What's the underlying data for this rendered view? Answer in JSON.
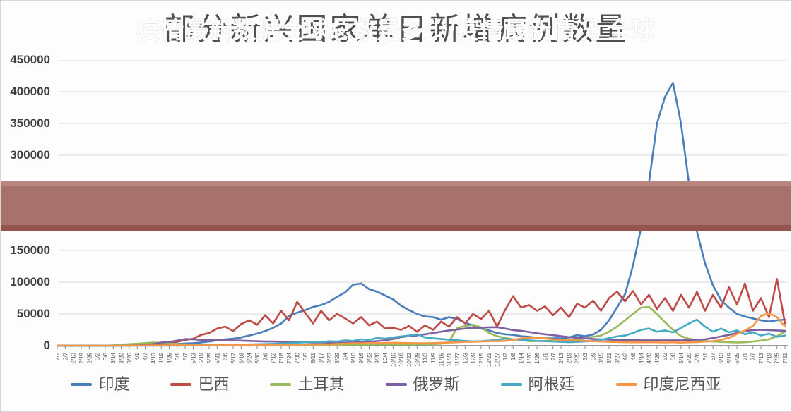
{
  "overlay_banner": {
    "text": "疫情最新数据全球总数是多少/疫情最新情况 全球",
    "band_color": "#a8726c",
    "band_top_color": "#b9867f",
    "band_bottom_color": "#96544e",
    "text_color": "#ffffff"
  },
  "chart_data": {
    "type": "line",
    "title": "部分新兴国家单日新增病例数量",
    "xlabel": "",
    "ylabel": "",
    "ylim": [
      0,
      450000
    ],
    "y_ticks": [
      0,
      50000,
      100000,
      150000,
      200000,
      250000,
      300000,
      350000,
      400000,
      450000
    ],
    "grid": "horizontal",
    "legend_position": "bottom",
    "x_labels": [
      "2/1",
      "2/7",
      "2/13",
      "2/19",
      "2/25",
      "3/2",
      "3/8",
      "3/14",
      "3/20",
      "3/26",
      "4/1",
      "4/7",
      "4/13",
      "4/19",
      "4/25",
      "5/1",
      "5/7",
      "5/13",
      "5/19",
      "5/25",
      "5/31",
      "6/6",
      "6/12",
      "6/18",
      "6/24",
      "6/30",
      "7/6",
      "7/12",
      "7/18",
      "7/24",
      "7/30",
      "8/5",
      "8/11",
      "8/17",
      "8/23",
      "8/29",
      "9/4",
      "9/10",
      "9/16",
      "9/22",
      "9/28",
      "10/4",
      "10/10",
      "10/16",
      "10/22",
      "10/28",
      "11/3",
      "11/9",
      "11/15",
      "11/21",
      "11/27",
      "12/3",
      "12/9",
      "12/15",
      "12/21",
      "12/27",
      "1/2",
      "1/8",
      "1/14",
      "1/20",
      "1/26",
      "2/1",
      "2/7",
      "2/13",
      "2/19",
      "2/25",
      "3/3",
      "3/9",
      "3/15",
      "3/21",
      "3/27",
      "4/2",
      "4/8",
      "4/14",
      "4/20",
      "4/26",
      "5/2",
      "5/8",
      "5/14",
      "5/20",
      "5/26",
      "6/1",
      "6/7",
      "6/13",
      "6/19",
      "6/25",
      "7/1",
      "7/7",
      "7/13",
      "7/19",
      "7/25",
      "7/31"
    ],
    "series": [
      {
        "id": "india",
        "name": "印度",
        "color": "#4a7ebb",
        "values": [
          0,
          0,
          0,
          0,
          0,
          0,
          50,
          100,
          200,
          400,
          600,
          900,
          1300,
          1800,
          2200,
          2800,
          3400,
          3900,
          5100,
          6500,
          8300,
          10000,
          11000,
          13000,
          16000,
          19000,
          23000,
          28000,
          35000,
          47000,
          52000,
          56000,
          61000,
          64000,
          69000,
          77000,
          84000,
          96000,
          98000,
          89000,
          85000,
          79000,
          73000,
          63000,
          56000,
          50000,
          46000,
          45000,
          41000,
          45000,
          42000,
          36000,
          32000,
          27000,
          24000,
          20000,
          18000,
          17000,
          15000,
          14000,
          12500,
          11500,
          11500,
          11500,
          13000,
          16500,
          15000,
          17500,
          25000,
          40000,
          60000,
          81000,
          126000,
          185000,
          257000,
          350000,
          392000,
          414000,
          350000,
          255000,
          180000,
          130000,
          95000,
          72000,
          60000,
          50000,
          46000,
          43000,
          40000,
          38000,
          40000,
          41000
        ]
      },
      {
        "id": "brazil",
        "name": "巴西",
        "color": "#bf4b48",
        "values": [
          0,
          0,
          0,
          0,
          0,
          0,
          0,
          0,
          300,
          700,
          1200,
          2000,
          2500,
          3000,
          4000,
          6000,
          9000,
          11000,
          17000,
          20000,
          27000,
          30000,
          23000,
          34000,
          40000,
          33000,
          48000,
          35000,
          55000,
          40000,
          69000,
          52000,
          35000,
          55000,
          40000,
          50000,
          43000,
          35000,
          45000,
          32000,
          38000,
          27000,
          28000,
          25000,
          31000,
          22000,
          32000,
          25000,
          38000,
          30000,
          45000,
          35000,
          50000,
          42000,
          55000,
          30000,
          56000,
          78000,
          60000,
          64000,
          55000,
          62000,
          48000,
          60000,
          45000,
          66000,
          60000,
          71000,
          55000,
          75000,
          85000,
          70000,
          86000,
          65000,
          80000,
          58000,
          75000,
          55000,
          80000,
          60000,
          85000,
          55000,
          80000,
          60000,
          92000,
          65000,
          98000,
          55000,
          75000,
          45000,
          105000,
          35000
        ]
      },
      {
        "id": "turkey",
        "name": "土耳其",
        "color": "#9abb59",
        "values": [
          0,
          0,
          0,
          0,
          0,
          0,
          0,
          500,
          1500,
          2500,
          3100,
          4100,
          5000,
          4500,
          3500,
          2500,
          2000,
          1700,
          1200,
          1000,
          900,
          900,
          1000,
          1200,
          1300,
          1400,
          1200,
          1100,
          950,
          900,
          950,
          1100,
          1200,
          1200,
          1300,
          1300,
          1500,
          1500,
          1700,
          1800,
          2000,
          2000,
          2000,
          2100,
          2200,
          2300,
          2400,
          2600,
          3000,
          6000,
          28000,
          31000,
          33000,
          29000,
          20000,
          15000,
          12000,
          10000,
          9000,
          7000,
          7500,
          7500,
          8000,
          8500,
          9000,
          9500,
          11000,
          14000,
          16000,
          22000,
          30000,
          40000,
          50000,
          60000,
          61000,
          50000,
          37000,
          25000,
          15000,
          11000,
          9000,
          7500,
          6500,
          6000,
          5500,
          5000,
          5500,
          6500,
          8000,
          10000,
          15000,
          22000
        ]
      },
      {
        "id": "russia",
        "name": "俄罗斯",
        "color": "#7d60a0",
        "values": [
          0,
          0,
          0,
          0,
          0,
          0,
          0,
          0,
          0,
          200,
          500,
          1000,
          2500,
          5000,
          6000,
          8000,
          10500,
          10000,
          9200,
          8900,
          8500,
          8700,
          8500,
          8000,
          7500,
          7000,
          6600,
          6500,
          6100,
          5800,
          5500,
          5300,
          5100,
          4900,
          4800,
          4700,
          4900,
          5200,
          5700,
          6200,
          7200,
          8700,
          10500,
          13600,
          15000,
          16200,
          18000,
          20000,
          22000,
          24000,
          25500,
          27000,
          28000,
          28500,
          29000,
          29000,
          27000,
          24500,
          23500,
          21500,
          19500,
          18000,
          16500,
          15000,
          13500,
          12500,
          11500,
          10500,
          10000,
          9500,
          9000,
          9000,
          8700,
          8500,
          8500,
          8500,
          8500,
          8400,
          8500,
          9000,
          9500,
          10000,
          12000,
          14500,
          17000,
          20000,
          23000,
          24500,
          25000,
          24500,
          24000,
          23500
        ]
      },
      {
        "id": "argentina",
        "name": "阿根廷",
        "color": "#46aac5",
        "values": [
          0,
          0,
          0,
          0,
          0,
          0,
          0,
          0,
          0,
          0,
          0,
          0,
          100,
          150,
          200,
          250,
          300,
          350,
          450,
          600,
          700,
          900,
          1200,
          1500,
          2000,
          2300,
          2600,
          3000,
          3500,
          4000,
          4800,
          5300,
          6000,
          5500,
          7000,
          6500,
          8500,
          7500,
          10000,
          9000,
          12000,
          11000,
          13000,
          14500,
          16000,
          18000,
          13000,
          11500,
          10500,
          9500,
          8500,
          7500,
          6500,
          7000,
          8000,
          9000,
          11000,
          10000,
          9500,
          8500,
          7500,
          7000,
          6500,
          6000,
          5500,
          6000,
          6500,
          7500,
          9000,
          12000,
          14500,
          16000,
          20000,
          25000,
          27000,
          22000,
          24000,
          21000,
          28000,
          35000,
          41000,
          30000,
          22000,
          27000,
          21000,
          24000,
          18000,
          21000,
          16000,
          19000,
          14000,
          16000
        ]
      },
      {
        "id": "indonesia",
        "name": "印度尼西亚",
        "color": "#f79646",
        "values": [
          0,
          0,
          0,
          0,
          0,
          0,
          0,
          0,
          0,
          100,
          150,
          250,
          300,
          350,
          350,
          400,
          450,
          500,
          500,
          550,
          700,
          650,
          900,
          1000,
          1100,
          1300,
          1300,
          1700,
          1800,
          1900,
          1800,
          1900,
          2000,
          2100,
          2000,
          2900,
          3300,
          3800,
          3700,
          4200,
          4000,
          4300,
          4500,
          4400,
          4100,
          4000,
          3800,
          4100,
          4500,
          4900,
          5500,
          6000,
          6200,
          6600,
          7000,
          7200,
          7500,
          9000,
          11500,
          12500,
          13000,
          11500,
          10000,
          9000,
          8500,
          8000,
          7500,
          7000,
          6500,
          6000,
          5800,
          5500,
          5300,
          5300,
          5500,
          5300,
          5000,
          5500,
          4800,
          5300,
          5700,
          6500,
          7000,
          9000,
          12500,
          18500,
          24000,
          31000,
          47000,
          51000,
          45000,
          30000
        ]
      }
    ]
  }
}
